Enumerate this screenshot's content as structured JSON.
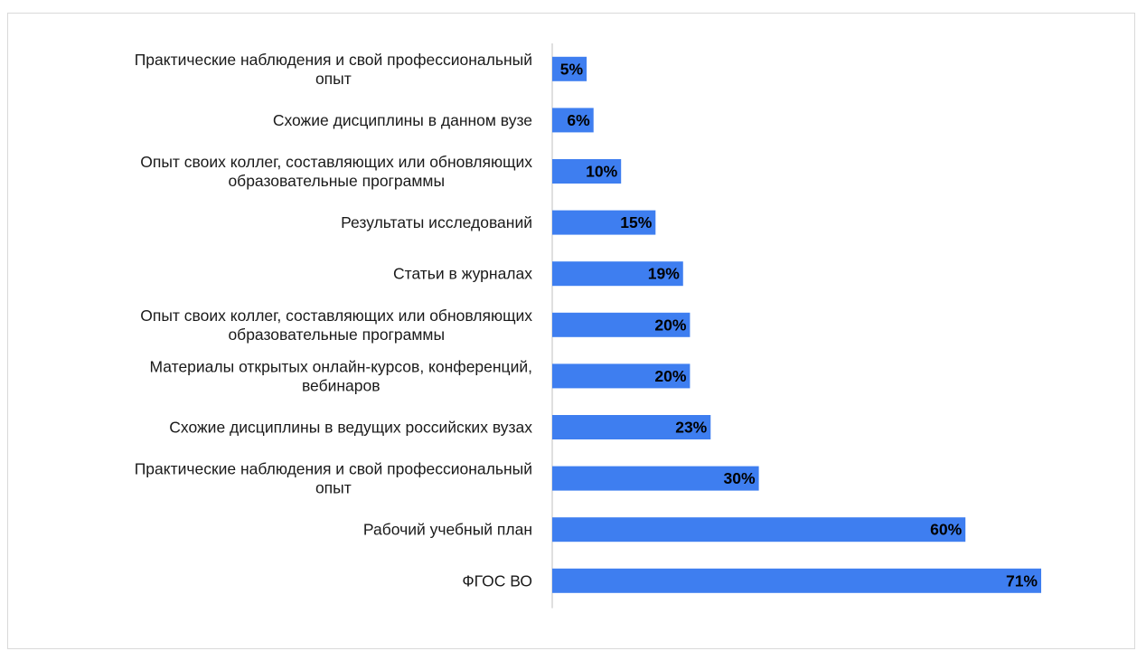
{
  "chart_data": {
    "type": "bar",
    "orientation": "horizontal",
    "categories": [
      [
        "Практические наблюдения и свой профессиональный",
        "опыт"
      ],
      [
        "Схожие дисциплины в данном вузе"
      ],
      [
        "Опыт своих коллег, составляющих или обновляющих",
        "образовательные программы"
      ],
      [
        "Результаты исследований"
      ],
      [
        "Статьи в журналах"
      ],
      [
        "Опыт своих коллег, составляющих или обновляющих",
        "образовательные программы"
      ],
      [
        "Материалы открытых онлайн-курсов, конференций,",
        "вебинаров"
      ],
      [
        "Схожие дисциплины в ведущих российских вузах"
      ],
      [
        "Практические наблюдения и свой профессиональный",
        "опыт"
      ],
      [
        "Рабочий учебный план"
      ],
      [
        "ФГОС ВО"
      ]
    ],
    "values": [
      5,
      6,
      10,
      15,
      19,
      20,
      20,
      23,
      30,
      60,
      71
    ],
    "value_labels": [
      "5%",
      "6%",
      "10%",
      "15%",
      "19%",
      "20%",
      "20%",
      "23%",
      "30%",
      "60%",
      "71%"
    ],
    "bar_color": "#3e7ef0",
    "xlim": [
      0,
      71
    ],
    "grid": false,
    "legend": false
  }
}
